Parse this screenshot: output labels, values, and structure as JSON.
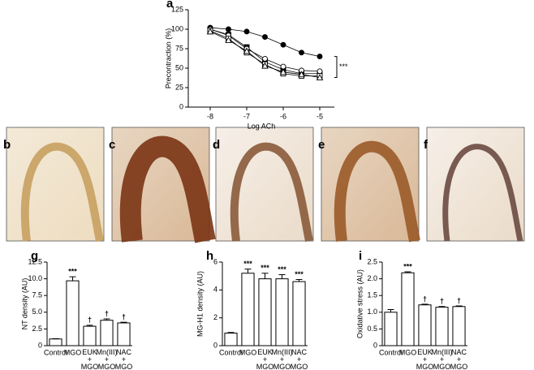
{
  "chart_data": [
    {
      "type": "line",
      "panel_label": "a",
      "y_label": "Precontraction (%)",
      "x_label": "Log ACh",
      "annotation": "***",
      "x": [
        -8,
        -7.5,
        -7,
        -6.5,
        -6,
        -5.5,
        -5
      ],
      "xlim": [
        -8.6,
        -4.6
      ],
      "xticks": [
        -8,
        -7,
        -6,
        -5
      ],
      "ylim": [
        0,
        125
      ],
      "yticks": [
        0,
        25,
        50,
        75,
        100,
        125
      ],
      "series": [
        {
          "color": "#000",
          "marker": "circle",
          "fill": "#000",
          "values": [
            102,
            100,
            97,
            90,
            80,
            70,
            65
          ]
        },
        {
          "color": "#000",
          "marker": "square",
          "fill": "#000",
          "values": [
            100,
            93,
            77,
            58,
            48,
            43,
            43
          ]
        },
        {
          "color": "#000",
          "marker": "circle",
          "fill": "#fff",
          "values": [
            100,
            92,
            75,
            62,
            52,
            47,
            46
          ]
        },
        {
          "color": "#000",
          "marker": "square",
          "fill": "#fff",
          "values": [
            98,
            88,
            70,
            55,
            43,
            40,
            40
          ]
        },
        {
          "color": "#000",
          "marker": "triangle",
          "fill": "#fff",
          "values": [
            97,
            86,
            72,
            53,
            45,
            42,
            38
          ]
        }
      ]
    },
    {
      "type": "bar",
      "panel_label": "g",
      "y_label": "NT density (AU)",
      "color": "#fff",
      "categories": [
        "Control",
        "MGO",
        "EUK + MGO",
        "Mn(III) + MGO",
        "NAC + MGO"
      ],
      "values": [
        1.0,
        9.7,
        2.9,
        3.8,
        3.4
      ],
      "errors": [
        0.05,
        0.6,
        0.15,
        0.2,
        0.1
      ],
      "annotations": [
        null,
        "***",
        "†",
        "†",
        "†"
      ],
      "ylim": [
        0,
        12.5
      ],
      "yticks": [
        0,
        2.5,
        {
          "value": 5,
          "label": "5.0"
        },
        7.5,
        {
          "value": 10,
          "label": "10.0"
        },
        12.5
      ]
    },
    {
      "type": "bar",
      "panel_label": "h",
      "y_label": "MG-H1 density (AU)",
      "color": "#fff",
      "categories": [
        "Control",
        "MGO",
        "EUK + MGO",
        "Mn(III) + MGO",
        "NAC + MGO"
      ],
      "values": [
        0.9,
        5.2,
        4.8,
        4.8,
        4.6
      ],
      "errors": [
        0.05,
        0.3,
        0.4,
        0.3,
        0.15
      ],
      "annotations": [
        null,
        "***",
        "***",
        "***",
        "***"
      ],
      "ylim": [
        0,
        6
      ],
      "yticks": [
        0,
        2,
        4,
        6
      ]
    },
    {
      "type": "bar",
      "panel_label": "i",
      "y_label": "Oxidative stress (AU)",
      "color": "#fff",
      "categories": [
        "Control",
        "MGO",
        "EUK + MGO",
        "Mn(III) + MGO",
        "NAC + MGO"
      ],
      "values": [
        1.0,
        2.18,
        1.22,
        1.15,
        1.17
      ],
      "errors": [
        0.08,
        0.03,
        0.02,
        0.02,
        0.02
      ],
      "annotations": [
        null,
        "***",
        "†",
        "†",
        "†"
      ],
      "ylim": [
        0,
        2.5
      ],
      "yticks": [
        0,
        0.5,
        {
          "value": 1,
          "label": "1.0"
        },
        1.5,
        {
          "value": 2,
          "label": "2.0"
        },
        2.5
      ]
    }
  ],
  "image_panels": [
    {
      "label": "b"
    },
    {
      "label": "c"
    },
    {
      "label": "d"
    },
    {
      "label": "e"
    },
    {
      "label": "f"
    }
  ]
}
